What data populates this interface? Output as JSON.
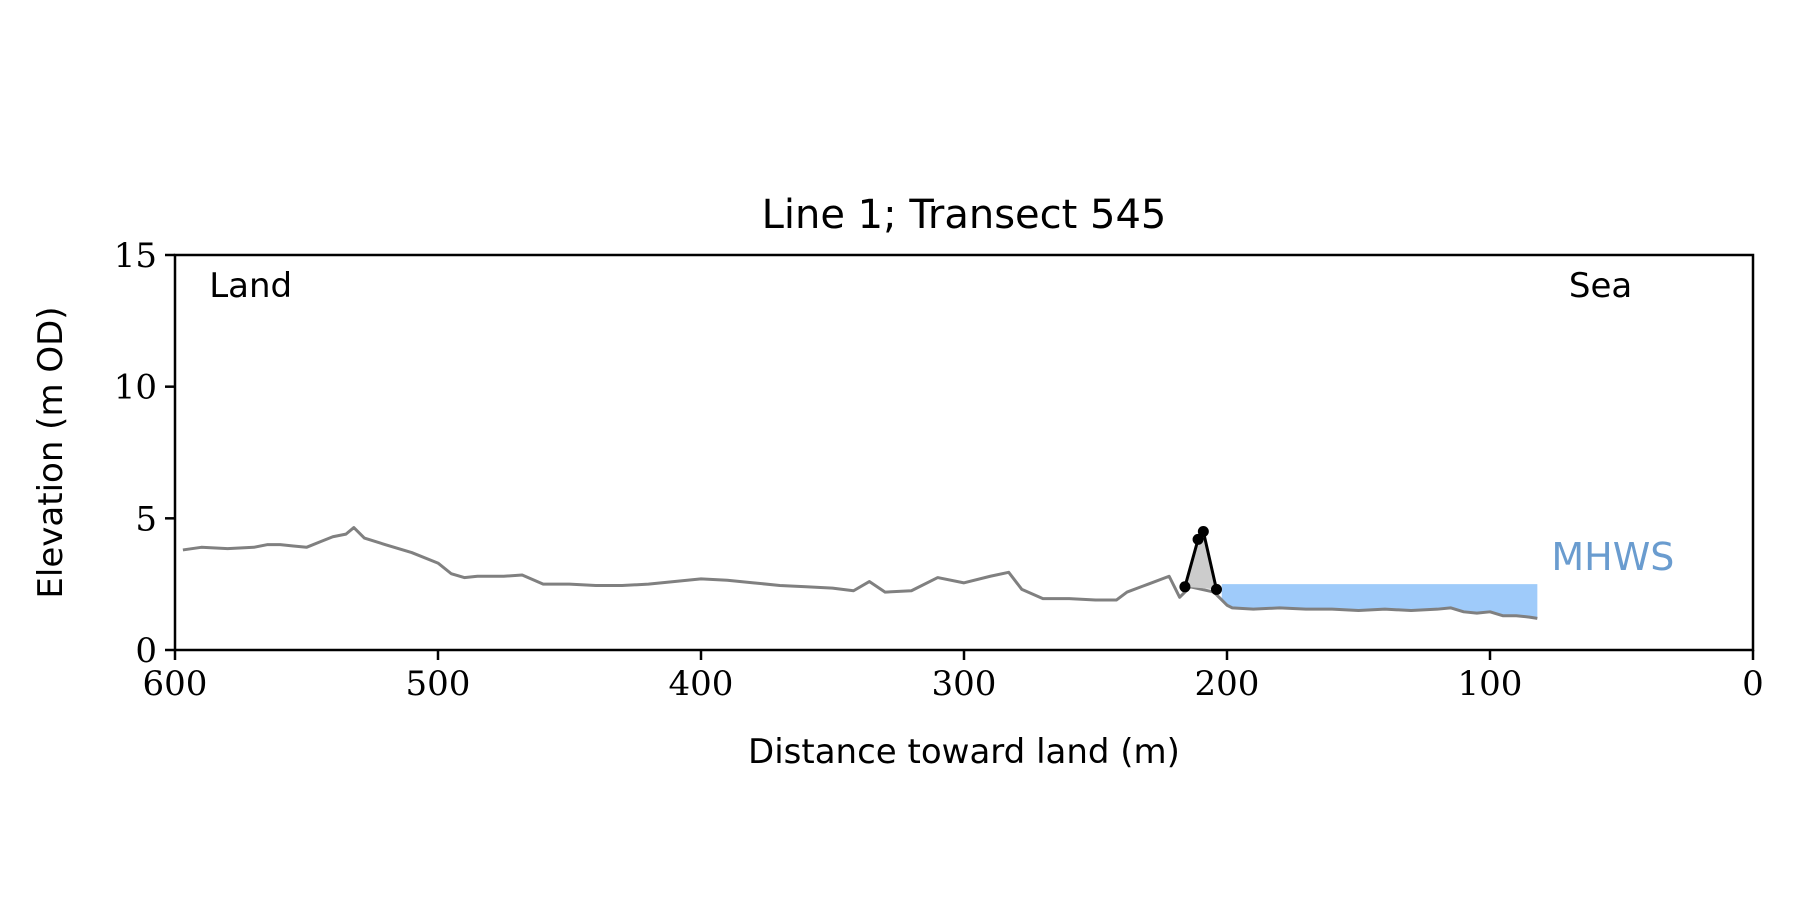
{
  "chart_data": {
    "type": "line",
    "title": "Line 1; Transect 545",
    "xlabel": "Distance toward land (m)",
    "ylabel": "Elevation (m OD)",
    "xlim": [
      600,
      0
    ],
    "ylim": [
      0,
      15
    ],
    "x_reversed": true,
    "xticks": [
      600,
      500,
      400,
      300,
      200,
      100,
      0
    ],
    "yticks": [
      0,
      5,
      10,
      15
    ],
    "grid": false,
    "annotations": [
      {
        "text": "Land",
        "x": 587,
        "y": 13.4
      },
      {
        "text": "Sea",
        "x": 70,
        "y": 13.4
      }
    ],
    "profile": {
      "color": "#808080",
      "x": [
        597,
        590,
        580,
        570,
        565,
        560,
        555,
        550,
        545,
        540,
        535,
        532,
        528,
        520,
        510,
        500,
        495,
        490,
        485,
        475,
        468,
        460,
        450,
        440,
        430,
        420,
        410,
        400,
        390,
        380,
        370,
        360,
        350,
        342,
        336,
        330,
        320,
        310,
        300,
        290,
        283,
        278,
        270,
        260,
        250,
        242,
        238,
        230,
        222,
        218,
        214,
        205,
        200,
        198,
        190,
        180,
        170,
        160,
        150,
        140,
        130,
        120,
        115,
        110,
        105,
        100,
        95,
        90,
        85,
        82
      ],
      "y": [
        3.8,
        3.9,
        3.85,
        3.9,
        4.0,
        4.0,
        3.95,
        3.9,
        4.1,
        4.3,
        4.4,
        4.65,
        4.25,
        4.0,
        3.7,
        3.3,
        2.9,
        2.75,
        2.8,
        2.8,
        2.85,
        2.5,
        2.5,
        2.45,
        2.45,
        2.5,
        2.6,
        2.7,
        2.65,
        2.55,
        2.45,
        2.4,
        2.35,
        2.25,
        2.6,
        2.2,
        2.25,
        2.75,
        2.55,
        2.8,
        2.95,
        2.3,
        1.95,
        1.95,
        1.9,
        1.9,
        2.2,
        2.5,
        2.8,
        2.0,
        2.4,
        2.2,
        1.7,
        1.6,
        1.55,
        1.6,
        1.55,
        1.55,
        1.5,
        1.55,
        1.5,
        1.55,
        1.6,
        1.45,
        1.4,
        1.45,
        1.3,
        1.3,
        1.25,
        1.2
      ]
    },
    "dune": {
      "line_color": "#000000",
      "fill_color": "#cccccc",
      "points": [
        {
          "x": 216,
          "y": 2.4
        },
        {
          "x": 211,
          "y": 4.2
        },
        {
          "x": 209,
          "y": 4.5
        },
        {
          "x": 204,
          "y": 2.3
        }
      ]
    },
    "mhws": {
      "label": "MHWS",
      "level": 2.5,
      "x_from": 202,
      "x_to": 82,
      "fill_color": "#9fcbfa",
      "label_color": "#6a9ccf"
    }
  }
}
